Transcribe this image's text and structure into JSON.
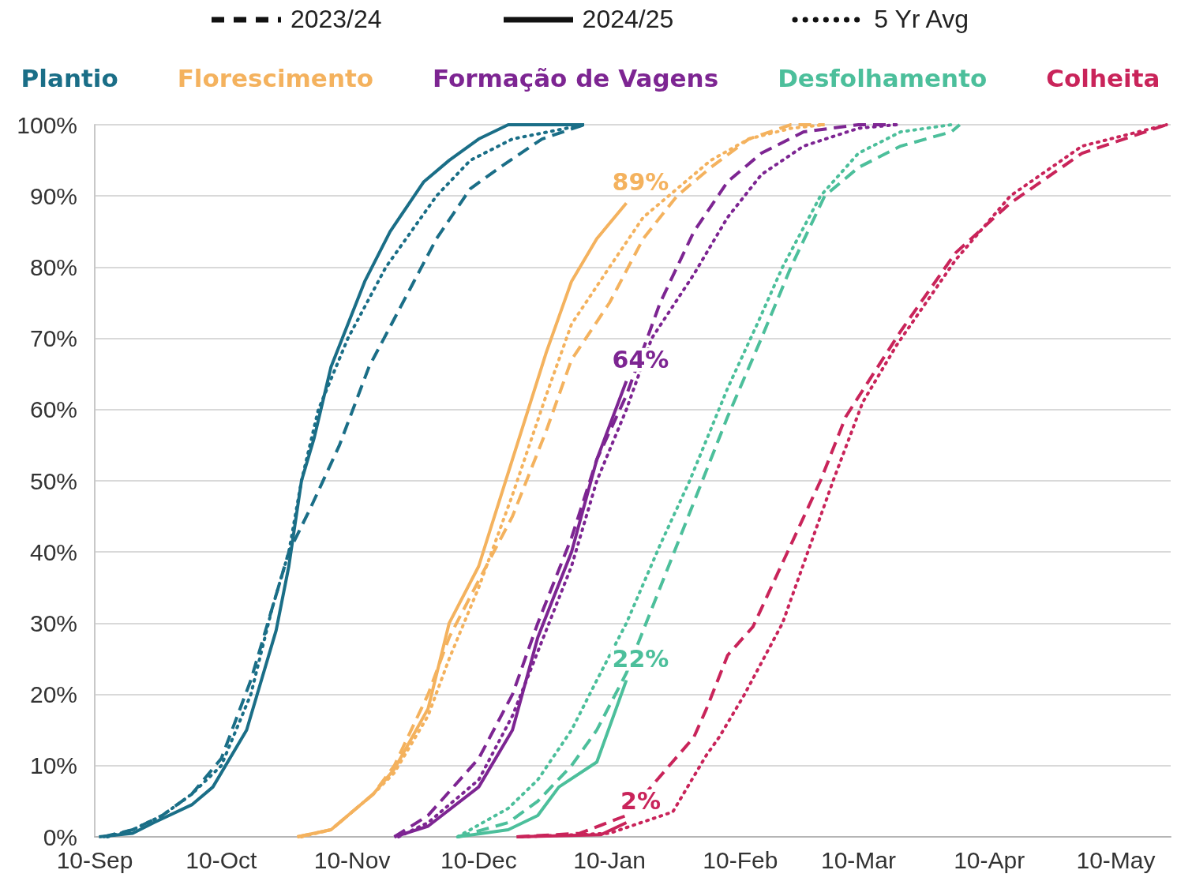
{
  "chart_data": {
    "type": "line",
    "legend": "top",
    "grid": "y",
    "marker": "none",
    "annotations": [
      "2023/24",
      "2024/25",
      "5 Yr Avg"
    ],
    "xlim": [
      "2024-09-10",
      "2025-05-23"
    ],
    "xticks": [
      {
        "value": "2024-09-10",
        "label": "10-Sep"
      },
      {
        "value": "2024-10-10",
        "label": "10-Oct"
      },
      {
        "value": "2024-11-10",
        "label": "10-Nov"
      },
      {
        "value": "2024-12-10",
        "label": "10-Dec"
      },
      {
        "value": "2025-01-10",
        "label": "10-Jan"
      },
      {
        "value": "2025-02-10",
        "label": "10-Feb"
      },
      {
        "value": "2025-03-10",
        "label": "10-Mar"
      },
      {
        "value": "2025-04-10",
        "label": "10-Apr"
      },
      {
        "value": "2025-05-10",
        "label": "10-May"
      }
    ],
    "ylim": [
      0,
      100
    ],
    "yticks": [
      {
        "value": 0,
        "label": "0%"
      },
      {
        "value": 10,
        "label": "10%"
      },
      {
        "value": 20,
        "label": "20%"
      },
      {
        "value": 30,
        "label": "30%"
      },
      {
        "value": 40,
        "label": "40%"
      },
      {
        "value": 50,
        "label": "50%"
      },
      {
        "value": 60,
        "label": "60%"
      },
      {
        "value": 70,
        "label": "70%"
      },
      {
        "value": 80,
        "label": "80%"
      },
      {
        "value": 90,
        "label": "90%"
      },
      {
        "value": 100,
        "label": "100%"
      }
    ],
    "series": [
      {
        "name": "Plantio",
        "color": "#1a6e87",
        "line_style": "dashed",
        "x": [
          "2024-09-12",
          "2024-09-19",
          "2024-09-26",
          "2024-10-03",
          "2024-10-10",
          "2024-10-17",
          "2024-10-22",
          "2024-10-26",
          "2024-10-31",
          "2024-11-07",
          "2024-11-14",
          "2024-11-22",
          "2024-11-30",
          "2024-12-08",
          "2024-12-15",
          "2024-12-25",
          "2025-01-04"
        ],
        "values": [
          0,
          1,
          3,
          6,
          11,
          22,
          32,
          40,
          46,
          55,
          66,
          75,
          84,
          91,
          94,
          98,
          100
        ]
      },
      {
        "color": "#1a6e87",
        "line_style": "solid",
        "x": [
          "2024-09-11",
          "2024-09-19",
          "2024-09-24",
          "2024-10-03",
          "2024-10-08",
          "2024-10-16",
          "2024-10-23",
          "2024-10-26",
          "2024-10-29",
          "2024-11-01",
          "2024-11-05",
          "2024-11-13",
          "2024-11-19",
          "2024-11-27",
          "2024-12-03",
          "2024-12-10",
          "2024-12-17",
          "2025-01-04"
        ],
        "values": [
          0,
          0.5,
          2,
          4.5,
          7,
          15,
          29,
          38,
          50,
          56,
          66,
          78,
          85,
          92,
          95,
          98,
          100,
          100
        ]
      },
      {
        "color": "#1a6e87",
        "line_style": "dotted",
        "x": [
          "2024-09-13",
          "2024-09-19",
          "2024-09-26",
          "2024-10-03",
          "2024-10-10",
          "2024-10-17",
          "2024-10-22",
          "2024-10-26",
          "2024-10-29",
          "2024-11-02",
          "2024-11-09",
          "2024-11-18",
          "2024-11-30",
          "2024-12-08",
          "2024-12-18",
          "2025-01-04"
        ],
        "values": [
          0,
          1,
          3,
          6,
          10,
          20,
          32,
          40,
          50,
          60,
          70,
          80,
          90,
          95,
          98,
          100
        ]
      },
      {
        "name": "Florescimento",
        "color": "#f4b25e",
        "line_style": "dashed",
        "x": [
          "2024-10-28",
          "2024-11-05",
          "2024-11-15",
          "2024-11-20",
          "2024-11-28",
          "2024-12-03",
          "2024-12-10",
          "2024-12-18",
          "2024-12-26",
          "2025-01-01",
          "2025-01-10",
          "2025-01-18",
          "2025-01-26",
          "2025-02-03",
          "2025-02-12",
          "2025-02-22",
          "2025-03-02"
        ],
        "values": [
          0,
          1,
          6,
          10,
          20,
          28,
          36,
          45,
          57,
          67,
          75,
          84,
          90,
          94,
          98,
          100,
          100
        ]
      },
      {
        "color": "#f4b25e",
        "line_style": "solid",
        "x": [
          "2024-10-28",
          "2024-11-05",
          "2024-11-15",
          "2024-11-20",
          "2024-11-28",
          "2024-12-03",
          "2024-12-10",
          "2024-12-18",
          "2024-12-26",
          "2025-01-01",
          "2025-01-07",
          "2025-01-14"
        ],
        "values": [
          0,
          1,
          6,
          9.5,
          18,
          30,
          38,
          53,
          68,
          78,
          84,
          89
        ],
        "value_labels": [
          null,
          null,
          null,
          null,
          null,
          null,
          null,
          null,
          null,
          null,
          null,
          "89%"
        ]
      },
      {
        "color": "#f4b25e",
        "line_style": "dotted",
        "x": [
          "2024-10-29",
          "2024-11-05",
          "2024-11-15",
          "2024-11-20",
          "2024-11-28",
          "2024-12-03",
          "2024-12-10",
          "2024-12-18",
          "2024-12-26",
          "2025-01-01",
          "2025-01-10",
          "2025-01-18",
          "2025-01-26",
          "2025-02-03",
          "2025-02-12",
          "2025-02-22",
          "2025-03-02"
        ],
        "values": [
          0,
          1,
          6,
          9,
          17,
          25,
          35,
          48,
          62,
          72,
          80,
          87,
          91,
          95,
          98,
          99.5,
          100
        ]
      },
      {
        "name": "Formação de Vagens",
        "color": "#7d2592",
        "line_style": "dashed",
        "x": [
          "2024-11-20",
          "2024-11-28",
          "2024-12-10",
          "2024-12-18",
          "2024-12-24",
          "2025-01-01",
          "2025-01-07",
          "2025-01-14",
          "2025-01-22",
          "2025-01-30",
          "2025-02-07",
          "2025-02-15",
          "2025-02-25",
          "2025-03-10",
          "2025-03-19"
        ],
        "values": [
          0,
          3,
          11,
          20,
          30,
          42,
          53,
          62,
          75,
          85,
          92,
          96,
          99,
          100,
          100
        ]
      },
      {
        "color": "#7d2592",
        "line_style": "solid",
        "x": [
          "2024-11-20",
          "2024-11-28",
          "2024-12-10",
          "2024-12-18",
          "2024-12-24",
          "2025-01-01",
          "2025-01-07",
          "2025-01-14"
        ],
        "values": [
          0,
          1.5,
          7,
          15,
          28,
          40,
          53,
          64
        ],
        "value_labels": [
          null,
          null,
          null,
          null,
          null,
          null,
          null,
          "64%"
        ]
      },
      {
        "color": "#7d2592",
        "line_style": "dotted",
        "x": [
          "2024-11-21",
          "2024-11-28",
          "2024-12-10",
          "2024-12-18",
          "2024-12-24",
          "2025-01-01",
          "2025-01-07",
          "2025-01-14",
          "2025-01-20",
          "2025-01-30",
          "2025-02-07",
          "2025-02-15",
          "2025-02-25",
          "2025-03-10",
          "2025-03-19"
        ],
        "values": [
          0,
          2,
          8,
          17,
          26,
          38,
          50,
          60,
          70,
          79,
          87,
          93,
          97,
          99.5,
          100
        ]
      },
      {
        "name": "Desfolhamento",
        "color": "#4cbf9b",
        "line_style": "dashed",
        "x": [
          "2024-12-05",
          "2024-12-17",
          "2024-12-24",
          "2025-01-01",
          "2025-01-07",
          "2025-01-14",
          "2025-01-22",
          "2025-01-30",
          "2025-02-07",
          "2025-02-15",
          "2025-02-22",
          "2025-03-02",
          "2025-03-10",
          "2025-03-20",
          "2025-04-01",
          "2025-04-03"
        ],
        "values": [
          0,
          2,
          5,
          10,
          15,
          23,
          35,
          47,
          59,
          70,
          80,
          90,
          94,
          97,
          99,
          100
        ]
      },
      {
        "color": "#4cbf9b",
        "line_style": "solid",
        "x": [
          "2024-12-05",
          "2024-12-17",
          "2024-12-24",
          "2024-12-29",
          "2025-01-07",
          "2025-01-14"
        ],
        "values": [
          0,
          1,
          3,
          7,
          10.5,
          22
        ],
        "value_labels": [
          null,
          null,
          null,
          null,
          null,
          "22%"
        ]
      },
      {
        "color": "#4cbf9b",
        "line_style": "dotted",
        "x": [
          "2024-12-05",
          "2024-12-17",
          "2024-12-24",
          "2025-01-01",
          "2025-01-07",
          "2025-01-14",
          "2025-01-22",
          "2025-01-29",
          "2025-02-07",
          "2025-02-14",
          "2025-02-20",
          "2025-03-01",
          "2025-03-10",
          "2025-03-20",
          "2025-04-01"
        ],
        "values": [
          0,
          4,
          8,
          15,
          22,
          30,
          41,
          50,
          63,
          72,
          80,
          90,
          96,
          99,
          100
        ]
      },
      {
        "name": "Colheita",
        "color": "#c9245a",
        "line_style": "dashed",
        "x": [
          "2024-12-19",
          "2025-01-03",
          "2025-01-14",
          "2025-01-30",
          "2025-02-02",
          "2025-02-07",
          "2025-02-13",
          "2025-03-01",
          "2025-03-07",
          "2025-03-20",
          "2025-04-02",
          "2025-04-15",
          "2025-05-02",
          "2025-05-22"
        ],
        "values": [
          0,
          0.5,
          3,
          14,
          18,
          25.5,
          29.5,
          50,
          59,
          71,
          82,
          89,
          96,
          100
        ]
      },
      {
        "color": "#c9245a",
        "line_style": "solid",
        "x": [
          "2024-12-19",
          "2025-01-08",
          "2025-01-14"
        ],
        "values": [
          0,
          0.3,
          2
        ],
        "value_labels": [
          null,
          null,
          "2%"
        ]
      },
      {
        "color": "#c9245a",
        "line_style": "dotted",
        "x": [
          "2024-12-20",
          "2025-01-10",
          "2025-01-25",
          "2025-02-02",
          "2025-02-05",
          "2025-02-11",
          "2025-02-20",
          "2025-03-04",
          "2025-03-11",
          "2025-03-19",
          "2025-04-02",
          "2025-04-15",
          "2025-05-02",
          "2025-05-22"
        ],
        "values": [
          0,
          0.5,
          3.5,
          11.5,
          14,
          20,
          30,
          50,
          61,
          69,
          81,
          90,
          97,
          100
        ]
      }
    ]
  }
}
